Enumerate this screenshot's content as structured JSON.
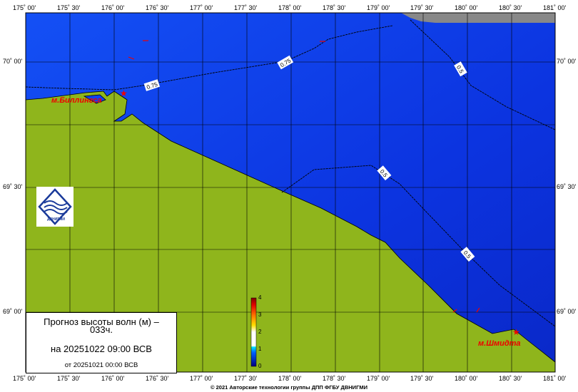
{
  "title": {
    "line1": "Прогноз высоты волн (м) –",
    "line2": "033ч.",
    "valid": "на 20251022 09:00 ВСВ",
    "issued": "от 20251021 00:00 ВСВ"
  },
  "copyright": "© 2021 Авторские технологии группы ДПП ФГБУ ДВНИГМИ",
  "logo": {
    "text": "ДВНИГМИ"
  },
  "lon_labels": [
    "175˚ 00'",
    "175˚ 30'",
    "176˚ 00'",
    "176˚ 30'",
    "177˚ 00'",
    "177˚ 30'",
    "178˚ 00'",
    "178˚ 30'",
    "179˚ 00'",
    "179˚ 30'",
    "180˚ 00'",
    "180˚ 30'",
    "181˚ 00'"
  ],
  "lat_labels": [
    "70˚ 00'",
    "69˚ 30'",
    "69˚ 00'"
  ],
  "places": [
    "м.Биллингса",
    "м.Шмидта"
  ],
  "contours": [
    "0.75",
    "0.75",
    "0.5",
    "0.5",
    "0.5"
  ],
  "colorbar": {
    "ticks": [
      "4",
      "3",
      "2",
      "1",
      "0"
    ]
  },
  "colors": {
    "land": "#8fb51c",
    "sea": "#1040f0",
    "deep": "#0a2ad0",
    "gray": "#888888"
  }
}
